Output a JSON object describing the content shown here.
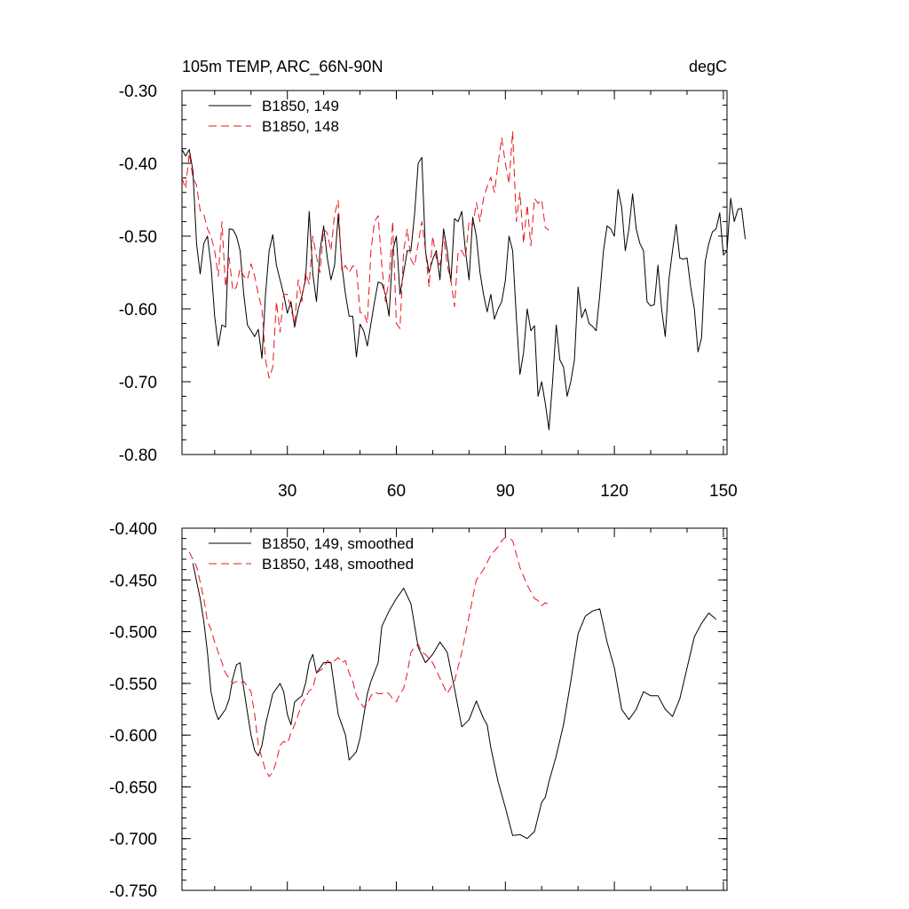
{
  "chart_data": [
    {
      "type": "line",
      "title": "105m TEMP, ARC_66N-90N",
      "units": "degC",
      "xlim": [
        1,
        151
      ],
      "ylim": [
        -0.8,
        -0.3
      ],
      "yticks": [
        -0.8,
        -0.7,
        -0.6,
        -0.5,
        -0.4,
        -0.3
      ],
      "ytick_labels": [
        "-0.80",
        "-0.70",
        "-0.60",
        "-0.50",
        "-0.40",
        "-0.30"
      ],
      "xticks": [
        30,
        60,
        90,
        120,
        150
      ],
      "xtick_labels": [
        "30",
        "60",
        "90",
        "120",
        "150"
      ],
      "grid": false,
      "legend": "top-left",
      "series": [
        {
          "name": "B1850, 149",
          "color": "#000000",
          "dash": "solid",
          "x_start": 1,
          "values": [
            -0.381,
            -0.39,
            -0.381,
            -0.41,
            -0.51,
            -0.552,
            -0.51,
            -0.5,
            -0.54,
            -0.61,
            -0.651,
            -0.622,
            -0.625,
            -0.49,
            -0.491,
            -0.5,
            -0.52,
            -0.58,
            -0.622,
            -0.63,
            -0.638,
            -0.628,
            -0.668,
            -0.58,
            -0.52,
            -0.498,
            -0.54,
            -0.56,
            -0.58,
            -0.606,
            -0.59,
            -0.625,
            -0.6,
            -0.582,
            -0.56,
            -0.466,
            -0.552,
            -0.59,
            -0.52,
            -0.486,
            -0.53,
            -0.56,
            -0.54,
            -0.47,
            -0.54,
            -0.58,
            -0.61,
            -0.61,
            -0.666,
            -0.621,
            -0.63,
            -0.651,
            -0.62,
            -0.59,
            -0.563,
            -0.565,
            -0.58,
            -0.61,
            -0.52,
            -0.5,
            -0.58,
            -0.55,
            -0.52,
            -0.52,
            -0.47,
            -0.4,
            -0.392,
            -0.52,
            -0.55,
            -0.532,
            -0.52,
            -0.56,
            -0.49,
            -0.52,
            -0.563,
            -0.476,
            -0.48,
            -0.466,
            -0.52,
            -0.56,
            -0.474,
            -0.5,
            -0.55,
            -0.58,
            -0.604,
            -0.58,
            -0.614,
            -0.6,
            -0.59,
            -0.561,
            -0.5,
            -0.52,
            -0.61,
            -0.69,
            -0.66,
            -0.6,
            -0.63,
            -0.623,
            -0.72,
            -0.7,
            -0.73,
            -0.766,
            -0.7,
            -0.622,
            -0.67,
            -0.68,
            -0.72,
            -0.7,
            -0.67,
            -0.57,
            -0.612,
            -0.6,
            -0.62,
            -0.624,
            -0.63,
            -0.58,
            -0.52,
            -0.486,
            -0.49,
            -0.5,
            -0.436,
            -0.46,
            -0.52,
            -0.49,
            -0.442,
            -0.49,
            -0.51,
            -0.52,
            -0.59,
            -0.596,
            -0.594,
            -0.54,
            -0.6,
            -0.638,
            -0.56,
            -0.52,
            -0.484,
            -0.53,
            -0.532,
            -0.53,
            -0.57,
            -0.6,
            -0.659,
            -0.64,
            -0.535,
            -0.51,
            -0.494,
            -0.49,
            -0.468,
            -0.526,
            -0.52,
            -0.448,
            -0.48,
            -0.463,
            -0.462,
            -0.504
          ]
        },
        {
          "name": "B1850, 148",
          "color": "#e8141e",
          "dash": "dashed",
          "x_start": 1,
          "values": [
            -0.42,
            -0.435,
            -0.386,
            -0.42,
            -0.43,
            -0.465,
            -0.47,
            -0.49,
            -0.5,
            -0.52,
            -0.555,
            -0.48,
            -0.57,
            -0.53,
            -0.575,
            -0.57,
            -0.544,
            -0.555,
            -0.56,
            -0.538,
            -0.555,
            -0.58,
            -0.6,
            -0.67,
            -0.695,
            -0.68,
            -0.59,
            -0.632,
            -0.58,
            -0.58,
            -0.6,
            -0.62,
            -0.56,
            -0.59,
            -0.55,
            -0.566,
            -0.5,
            -0.528,
            -0.55,
            -0.49,
            -0.496,
            -0.52,
            -0.47,
            -0.451,
            -0.548,
            -0.54,
            -0.55,
            -0.541,
            -0.543,
            -0.605,
            -0.605,
            -0.62,
            -0.52,
            -0.48,
            -0.472,
            -0.54,
            -0.59,
            -0.56,
            -0.48,
            -0.62,
            -0.627,
            -0.52,
            -0.49,
            -0.532,
            -0.541,
            -0.51,
            -0.48,
            -0.52,
            -0.57,
            -0.5,
            -0.53,
            -0.54,
            -0.5,
            -0.54,
            -0.56,
            -0.597,
            -0.52,
            -0.52,
            -0.53,
            -0.48,
            -0.486,
            -0.454,
            -0.48,
            -0.448,
            -0.432,
            -0.419,
            -0.44,
            -0.4,
            -0.365,
            -0.4,
            -0.428,
            -0.356,
            -0.48,
            -0.44,
            -0.51,
            -0.457,
            -0.513,
            -0.448,
            -0.455,
            -0.45,
            -0.488,
            -0.492
          ]
        }
      ]
    },
    {
      "type": "line",
      "xlim": [
        1,
        151
      ],
      "ylim": [
        -0.75,
        -0.4
      ],
      "yticks": [
        -0.75,
        -0.7,
        -0.65,
        -0.6,
        -0.55,
        -0.5,
        -0.45,
        -0.4
      ],
      "ytick_labels": [
        "-0.750",
        "-0.700",
        "-0.650",
        "-0.600",
        "-0.550",
        "-0.500",
        "-0.450",
        "-0.400"
      ],
      "xticks": [
        30,
        60,
        90,
        120,
        150
      ],
      "grid": false,
      "legend": "top-left",
      "series": [
        {
          "name": "B1850, 149, smoothed",
          "color": "#000000",
          "dash": "solid",
          "x": [
            4,
            6,
            7,
            8,
            9,
            10,
            11,
            12,
            13,
            14,
            15,
            16,
            17,
            18,
            19,
            20,
            21,
            22,
            23,
            24,
            26,
            28,
            29,
            30,
            31,
            32,
            34,
            35,
            36,
            37,
            38,
            40,
            42,
            43,
            44,
            46,
            47,
            49,
            50,
            52,
            53,
            55,
            56,
            58,
            60,
            62,
            64,
            66,
            68,
            70,
            72,
            74,
            76,
            78,
            80,
            82,
            84,
            85,
            86,
            88,
            90,
            92,
            94,
            96,
            98,
            100,
            101,
            102,
            104,
            106,
            108,
            110,
            112,
            114,
            116,
            118,
            120,
            122,
            124,
            126,
            128,
            130,
            132,
            134,
            136,
            138,
            140,
            142,
            144,
            146,
            148
          ],
          "values": [
            -0.434,
            -0.468,
            -0.49,
            -0.52,
            -0.558,
            -0.575,
            -0.585,
            -0.58,
            -0.575,
            -0.565,
            -0.545,
            -0.532,
            -0.53,
            -0.555,
            -0.578,
            -0.6,
            -0.615,
            -0.62,
            -0.61,
            -0.59,
            -0.56,
            -0.55,
            -0.558,
            -0.58,
            -0.59,
            -0.568,
            -0.562,
            -0.55,
            -0.53,
            -0.522,
            -0.54,
            -0.53,
            -0.53,
            -0.555,
            -0.58,
            -0.6,
            -0.624,
            -0.616,
            -0.603,
            -0.56,
            -0.548,
            -0.53,
            -0.495,
            -0.48,
            -0.468,
            -0.458,
            -0.473,
            -0.515,
            -0.53,
            -0.522,
            -0.51,
            -0.52,
            -0.555,
            -0.592,
            -0.585,
            -0.567,
            -0.584,
            -0.59,
            -0.612,
            -0.645,
            -0.67,
            -0.697,
            -0.696,
            -0.7,
            -0.693,
            -0.665,
            -0.66,
            -0.645,
            -0.62,
            -0.59,
            -0.548,
            -0.502,
            -0.485,
            -0.48,
            -0.478,
            -0.51,
            -0.535,
            -0.575,
            -0.585,
            -0.575,
            -0.558,
            -0.562,
            -0.562,
            -0.575,
            -0.582,
            -0.565,
            -0.535,
            -0.505,
            -0.492,
            -0.482,
            -0.488
          ]
        },
        {
          "name": "B1850, 148, smoothed",
          "color": "#e8141e",
          "dash": "dashed",
          "x": [
            3,
            5,
            6,
            7,
            8,
            9,
            10,
            11,
            12,
            13,
            15,
            16,
            17,
            18,
            20,
            21,
            22,
            23,
            24,
            25,
            26,
            27,
            28,
            29,
            30,
            31,
            32,
            34,
            36,
            37,
            38,
            40,
            41,
            42,
            43,
            44,
            45,
            46,
            47,
            48,
            49,
            50,
            51,
            52,
            53,
            54,
            55,
            56,
            57,
            58,
            59,
            60,
            61,
            62,
            63,
            64,
            65,
            66,
            67,
            68,
            70,
            72,
            74,
            76,
            78,
            80,
            82,
            84,
            86,
            88,
            89,
            90,
            91,
            92,
            94,
            96,
            98,
            99,
            100,
            101,
            102
          ],
          "values": [
            -0.423,
            -0.437,
            -0.452,
            -0.468,
            -0.49,
            -0.498,
            -0.51,
            -0.52,
            -0.53,
            -0.54,
            -0.55,
            -0.548,
            -0.55,
            -0.548,
            -0.558,
            -0.58,
            -0.61,
            -0.622,
            -0.634,
            -0.64,
            -0.636,
            -0.625,
            -0.61,
            -0.606,
            -0.608,
            -0.598,
            -0.59,
            -0.57,
            -0.557,
            -0.555,
            -0.54,
            -0.535,
            -0.528,
            -0.53,
            -0.528,
            -0.525,
            -0.53,
            -0.528,
            -0.54,
            -0.548,
            -0.562,
            -0.568,
            -0.573,
            -0.57,
            -0.562,
            -0.558,
            -0.56,
            -0.56,
            -0.558,
            -0.56,
            -0.565,
            -0.568,
            -0.56,
            -0.555,
            -0.54,
            -0.52,
            -0.515,
            -0.512,
            -0.52,
            -0.522,
            -0.53,
            -0.545,
            -0.56,
            -0.548,
            -0.52,
            -0.485,
            -0.45,
            -0.44,
            -0.426,
            -0.418,
            -0.412,
            -0.409,
            -0.41,
            -0.412,
            -0.438,
            -0.455,
            -0.468,
            -0.47,
            -0.475,
            -0.472,
            -0.474
          ]
        }
      ]
    }
  ]
}
